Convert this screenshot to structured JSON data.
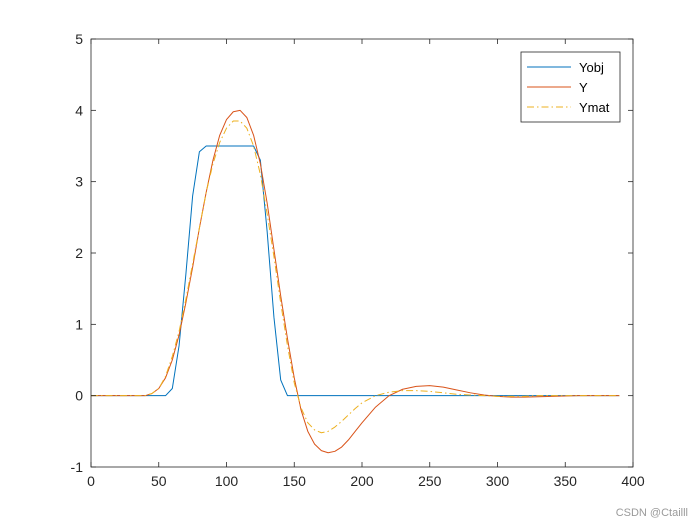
{
  "chart_data": {
    "type": "line",
    "title": "",
    "xlabel": "",
    "ylabel": "",
    "xlim": [
      0,
      400
    ],
    "ylim": [
      -1,
      5
    ],
    "xticks": [
      0,
      50,
      100,
      150,
      200,
      250,
      300,
      350,
      400
    ],
    "yticks": [
      -1,
      0,
      1,
      2,
      3,
      4,
      5
    ],
    "grid": false,
    "legend_position": "top-right",
    "series": [
      {
        "name": "Yobj",
        "color": "#0072BD",
        "style": "solid",
        "x": [
          0,
          55,
          60,
          65,
          70,
          75,
          80,
          85,
          90,
          120,
          125,
          130,
          135,
          140,
          145,
          150,
          390
        ],
        "y": [
          0,
          0,
          0.1,
          0.7,
          1.7,
          2.8,
          3.42,
          3.5,
          3.5,
          3.5,
          3.3,
          2.3,
          1.1,
          0.22,
          0,
          0,
          0
        ]
      },
      {
        "name": "Y",
        "color": "#D95319",
        "style": "solid",
        "x": [
          0,
          40,
          45,
          50,
          55,
          60,
          65,
          70,
          75,
          80,
          85,
          90,
          95,
          100,
          105,
          110,
          115,
          120,
          125,
          130,
          135,
          140,
          145,
          150,
          155,
          160,
          165,
          170,
          175,
          180,
          185,
          190,
          195,
          200,
          210,
          220,
          230,
          240,
          250,
          260,
          270,
          280,
          290,
          300,
          310,
          320,
          330,
          340,
          350,
          360,
          370,
          380,
          390
        ],
        "y": [
          0,
          0,
          0.03,
          0.1,
          0.25,
          0.5,
          0.85,
          1.3,
          1.8,
          2.35,
          2.85,
          3.3,
          3.65,
          3.87,
          3.98,
          4.0,
          3.9,
          3.65,
          3.25,
          2.7,
          2.05,
          1.4,
          0.8,
          0.25,
          -0.2,
          -0.5,
          -0.68,
          -0.77,
          -0.8,
          -0.78,
          -0.72,
          -0.62,
          -0.5,
          -0.38,
          -0.16,
          0.0,
          0.09,
          0.13,
          0.14,
          0.12,
          0.08,
          0.04,
          0.01,
          -0.01,
          -0.02,
          -0.02,
          -0.015,
          -0.01,
          -0.005,
          0,
          0,
          0,
          0
        ]
      },
      {
        "name": "Ymat",
        "color": "#EDB120",
        "style": "dashdot",
        "x": [
          0,
          40,
          45,
          50,
          55,
          60,
          65,
          70,
          75,
          80,
          85,
          90,
          95,
          100,
          105,
          110,
          115,
          120,
          125,
          130,
          135,
          140,
          145,
          150,
          155,
          160,
          165,
          170,
          175,
          180,
          185,
          190,
          195,
          200,
          210,
          220,
          230,
          240,
          250,
          260,
          270,
          280,
          290,
          300,
          310,
          320,
          330,
          340,
          350,
          360,
          370,
          380,
          390
        ],
        "y": [
          0,
          0,
          0.03,
          0.1,
          0.27,
          0.55,
          0.9,
          1.35,
          1.85,
          2.35,
          2.85,
          3.25,
          3.55,
          3.75,
          3.85,
          3.85,
          3.75,
          3.5,
          3.1,
          2.55,
          1.95,
          1.3,
          0.7,
          0.18,
          -0.17,
          -0.38,
          -0.48,
          -0.52,
          -0.5,
          -0.44,
          -0.36,
          -0.27,
          -0.18,
          -0.1,
          0.0,
          0.05,
          0.07,
          0.07,
          0.06,
          0.04,
          0.02,
          0.01,
          0.0,
          -0.01,
          -0.01,
          -0.01,
          0,
          0,
          0,
          0,
          0,
          0,
          0
        ]
      }
    ]
  },
  "watermark": "CSDN @Ctailll"
}
